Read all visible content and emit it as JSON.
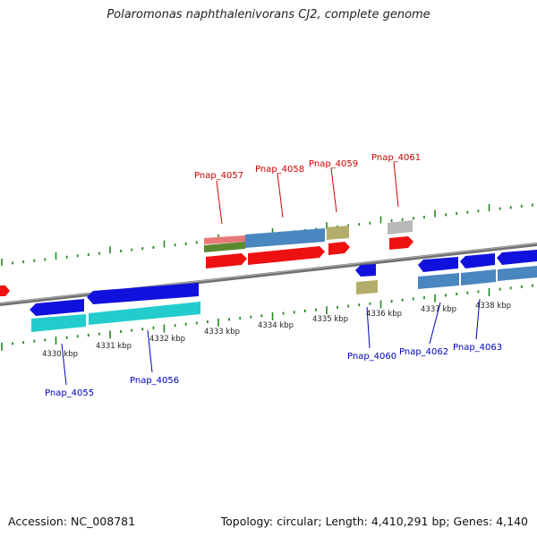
{
  "title": "Polaromonas naphthalenivorans CJ2, complete genome",
  "footer": {
    "accession": "Accession: NC_008781",
    "topology": "Topology: circular; Length: 4,410,291 bp; Genes: 4,140"
  },
  "colors": {
    "forward_cds": "#ee1111",
    "reverse_cds": "#1111dd",
    "gene_blue": "#4a86c0",
    "gene_cyan": "#22cccc",
    "gene_khaki": "#b4ac6a",
    "gene_grey": "#b8b8b8",
    "gene_salmon": "#e87878",
    "gene_olive": "#5a8a30",
    "tick_green": "#228822",
    "label_red": "#cc0000",
    "label_blue": "#0000bb"
  },
  "scale_ticks": [
    "4330 kbp",
    "4331 kbp",
    "4332 kbp",
    "4333 kbp",
    "4334 kbp",
    "4335 kbp",
    "4336 kbp",
    "4337 kbp",
    "4338 kbp"
  ],
  "gene_labels": {
    "top": [
      "Pnap_4057",
      "Pnap_4058",
      "Pnap_4059",
      "Pnap_4061"
    ],
    "bottom": [
      "Pnap_4055",
      "Pnap_4056",
      "Pnap_4060",
      "Pnap_4062",
      "Pnap_4063"
    ]
  }
}
